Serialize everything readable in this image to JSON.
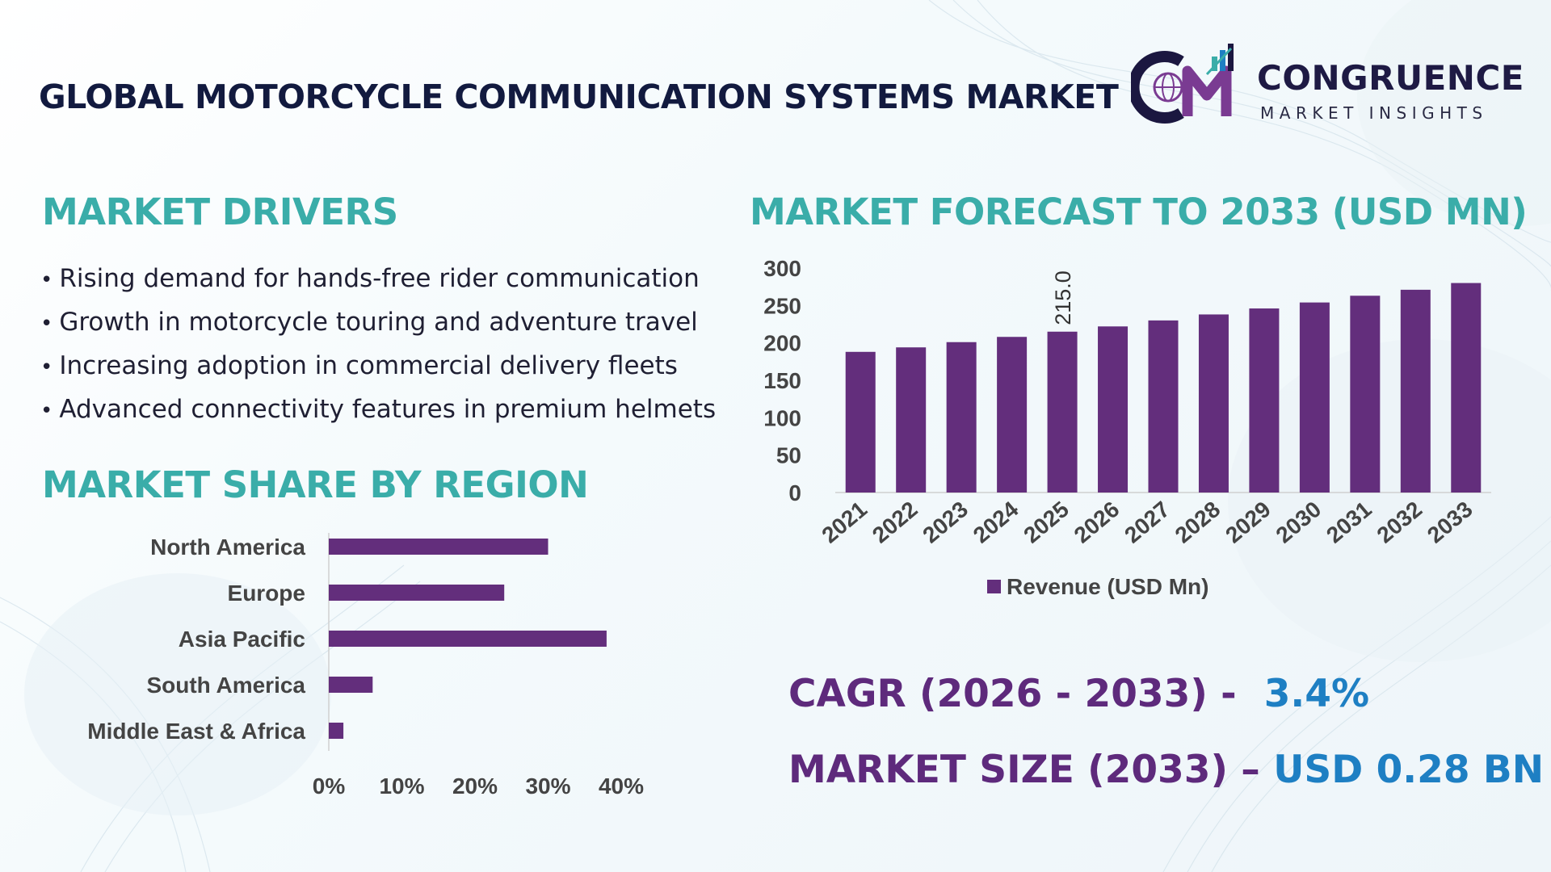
{
  "title": "GLOBAL MOTORCYCLE COMMUNICATION SYSTEMS MARKET",
  "logo": {
    "name": "CONGRUENCE",
    "subtitle": "MARKET INSIGHTS"
  },
  "drivers": {
    "heading": "MARKET DRIVERS",
    "items": [
      "Rising demand for hands-free rider communication",
      "Growth in motorcycle touring and adventure travel",
      "Increasing adoption in commercial delivery fleets",
      "Advanced connectivity features in premium helmets"
    ]
  },
  "share": {
    "heading": "MARKET SHARE BY REGION"
  },
  "forecast": {
    "heading": "MARKET FORECAST TO 2033 (USD MN)"
  },
  "stats": {
    "cagr_label": "CAGR (2026 - 2033) -",
    "cagr_value": "3.4%",
    "size_label": "MARKET SIZE (2033) –",
    "size_value": "USD 0.28 BN"
  },
  "colors": {
    "bar": "#632e7c",
    "heading": "#3aada9",
    "title": "#121a3f",
    "accent": "#1e7fc3",
    "stat": "#5e2a7c"
  },
  "chart_data": [
    {
      "type": "bar",
      "orientation": "horizontal",
      "categories": [
        "North America",
        "Europe",
        "Asia Pacific",
        "South America",
        "Middle East & Africa"
      ],
      "values": [
        30,
        24,
        38,
        6,
        2
      ],
      "unit": "%",
      "xlim": [
        0,
        40
      ],
      "xticks": [
        "0%",
        "10%",
        "20%",
        "30%",
        "40%"
      ],
      "grid": false,
      "legend": "none"
    },
    {
      "type": "bar",
      "categories": [
        "2021",
        "2022",
        "2023",
        "2024",
        "2025",
        "2026",
        "2027",
        "2028",
        "2029",
        "2030",
        "2031",
        "2032",
        "2033"
      ],
      "series": [
        {
          "name": "Revenue (USD Mn)",
          "values": [
            188,
            194,
            201,
            208,
            215,
            222,
            230,
            238,
            246,
            254,
            263,
            271,
            280
          ]
        }
      ],
      "data_labels": [
        {
          "index": 4,
          "text": "215.0"
        }
      ],
      "ylim": [
        0,
        300
      ],
      "yticks": [
        "0",
        "50",
        "100",
        "150",
        "200",
        "250",
        "300"
      ],
      "grid": false,
      "legend": "bottom-center"
    }
  ]
}
